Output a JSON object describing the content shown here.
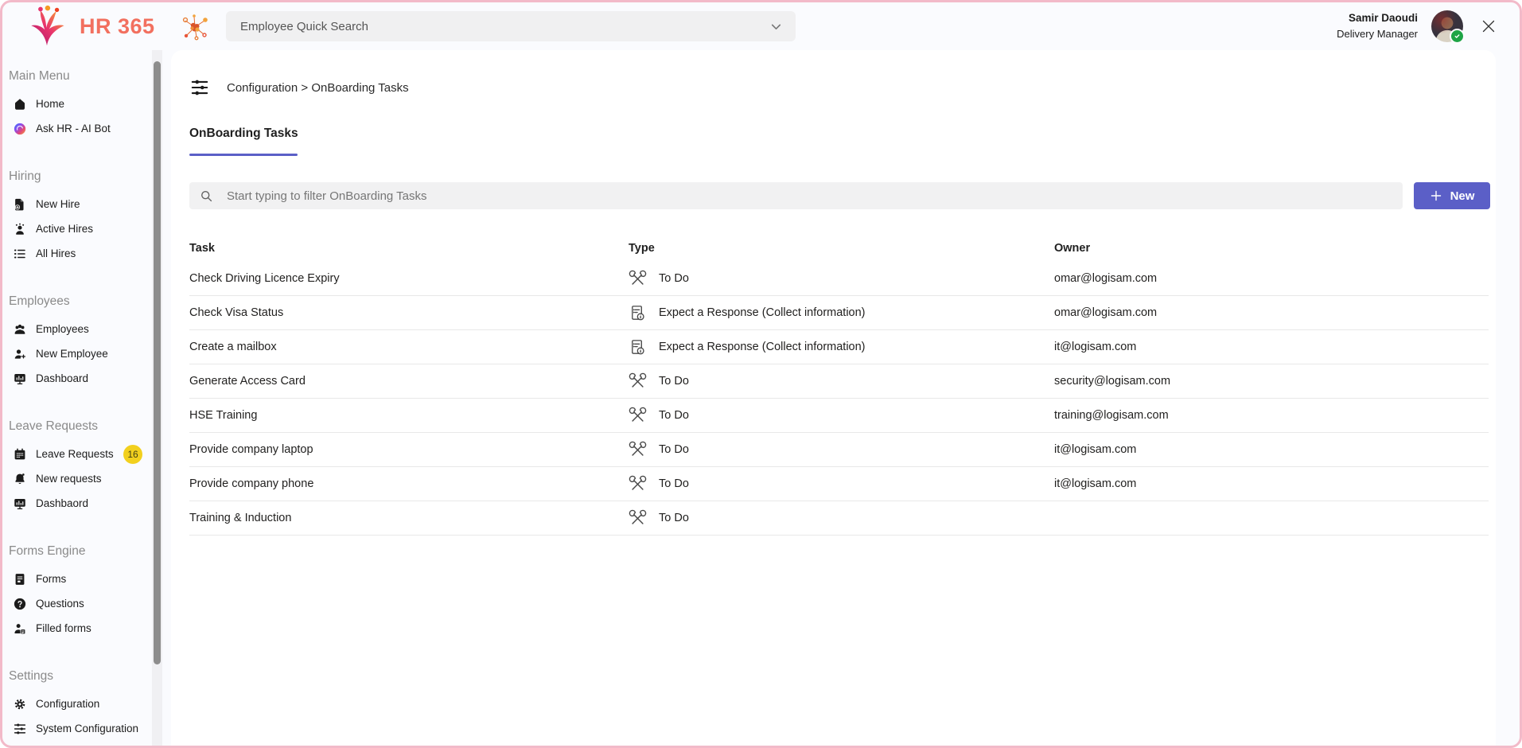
{
  "app": {
    "brand": "HR 365",
    "quick_search_placeholder": "Employee Quick Search",
    "user": {
      "name": "Samir Daoudi",
      "role": "Delivery Manager"
    }
  },
  "colors": {
    "accent": "#5b5fc7",
    "brand_text": "#f2705f",
    "border_pink": "#f2bac9",
    "badge_bg": "#f2d01e",
    "presence_green": "#1ea446"
  },
  "sidebar": {
    "sections": [
      {
        "title": "Main Menu",
        "items": [
          {
            "label": "Home",
            "icon": "home"
          },
          {
            "label": "Ask HR - AI Bot",
            "icon": "copilot"
          }
        ]
      },
      {
        "title": "Hiring",
        "items": [
          {
            "label": "New Hire",
            "icon": "doc-add"
          },
          {
            "label": "Active Hires",
            "icon": "people-active"
          },
          {
            "label": "All Hires",
            "icon": "list"
          }
        ]
      },
      {
        "title": "Employees",
        "items": [
          {
            "label": "Employees",
            "icon": "people"
          },
          {
            "label": "New Employee",
            "icon": "person-add"
          },
          {
            "label": "Dashboard",
            "icon": "dashboard"
          }
        ]
      },
      {
        "title": "Leave Requests",
        "items": [
          {
            "label": "Leave Requests",
            "icon": "calendar",
            "badge": "16"
          },
          {
            "label": "New requests",
            "icon": "bell"
          },
          {
            "label": "Dashbaord",
            "icon": "dashboard"
          }
        ]
      },
      {
        "title": "Forms Engine",
        "items": [
          {
            "label": "Forms",
            "icon": "form"
          },
          {
            "label": "Questions",
            "icon": "question"
          },
          {
            "label": "Filled forms",
            "icon": "person-form"
          }
        ]
      },
      {
        "title": "Settings",
        "items": [
          {
            "label": "Configuration",
            "icon": "gear"
          },
          {
            "label": "System Configuration",
            "icon": "sliders"
          }
        ]
      }
    ]
  },
  "main": {
    "breadcrumb": "Configuration > OnBoarding Tasks",
    "tab": "OnBoarding Tasks",
    "filter_placeholder": "Start typing to filter OnBoarding Tasks",
    "new_button": "New",
    "table": {
      "columns": [
        "Task",
        "Type",
        "Owner"
      ],
      "rows": [
        {
          "task": "Check Driving Licence Expiry",
          "type": "To Do",
          "type_icon": "tools",
          "owner": "omar@logisam.com"
        },
        {
          "task": "Check Visa Status",
          "type": "Expect a Response (Collect information)",
          "type_icon": "form-info",
          "owner": "omar@logisam.com"
        },
        {
          "task": "Create a mailbox",
          "type": "Expect a Response (Collect information)",
          "type_icon": "form-info",
          "owner": "it@logisam.com"
        },
        {
          "task": "Generate Access Card",
          "type": "To Do",
          "type_icon": "tools",
          "owner": "security@logisam.com"
        },
        {
          "task": "HSE Training",
          "type": "To Do",
          "type_icon": "tools",
          "owner": "training@logisam.com"
        },
        {
          "task": "Provide company laptop",
          "type": "To Do",
          "type_icon": "tools",
          "owner": "it@logisam.com"
        },
        {
          "task": "Provide company phone",
          "type": "To Do",
          "type_icon": "tools",
          "owner": "it@logisam.com"
        },
        {
          "task": "Training & Induction",
          "type": "To Do",
          "type_icon": "tools",
          "owner": ""
        }
      ]
    }
  }
}
